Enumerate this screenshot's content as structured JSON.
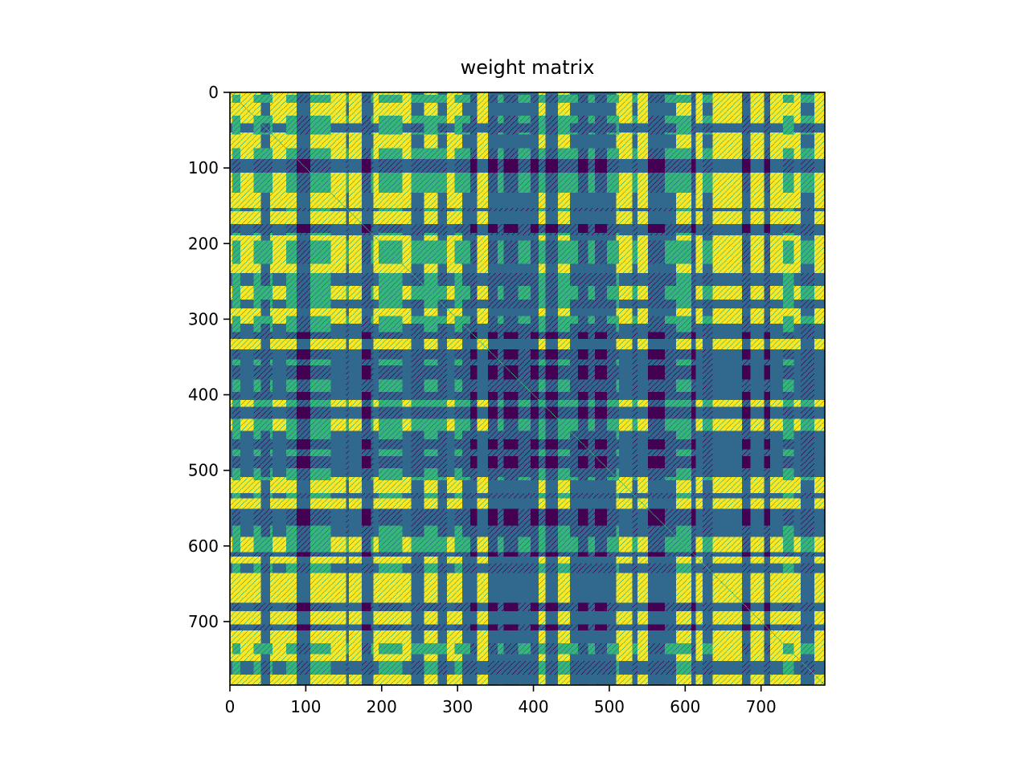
{
  "chart_data": {
    "type": "heatmap",
    "title": "weight matrix",
    "xlabel": "",
    "ylabel": "",
    "rows": 784,
    "cols": 784,
    "xlim": [
      0,
      784
    ],
    "ylim": [
      784,
      0
    ],
    "colormap": "viridis",
    "colormap_stops": [
      "#440154",
      "#31688e",
      "#35b779",
      "#fde725"
    ],
    "x_ticks": [
      0,
      100,
      200,
      300,
      400,
      500,
      600,
      700
    ],
    "y_ticks": [
      0,
      100,
      200,
      300,
      400,
      500,
      600,
      700
    ],
    "x_tick_labels": [
      "0",
      "100",
      "200",
      "300",
      "400",
      "500",
      "600",
      "700"
    ],
    "y_tick_labels": [
      "0",
      "100",
      "200",
      "300",
      "400",
      "500",
      "600",
      "700"
    ],
    "grid": false,
    "legend": "none",
    "pattern": "symmetric matrix of discrete levels; dense diagonal; low-value bands around rows/columns 330-580"
  }
}
